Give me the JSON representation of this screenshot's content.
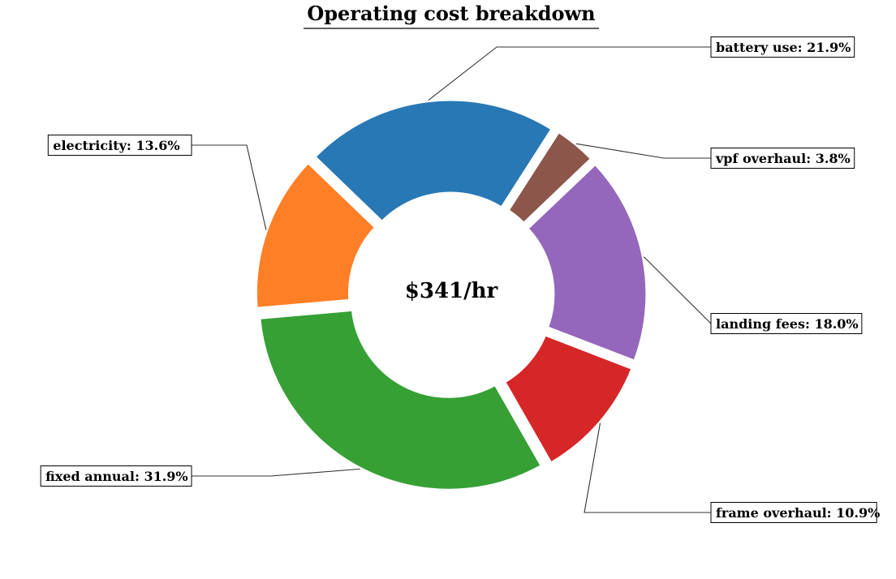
{
  "chart_data": {
    "type": "pie",
    "variant": "donut",
    "title": "Operating cost breakdown",
    "center_label": "$341/hr",
    "slices": [
      {
        "name": "battery use",
        "value": 21.9,
        "label": "battery use: 21.9%",
        "color": "#2878b5"
      },
      {
        "name": "vpf overhaul",
        "value": 3.8,
        "label": "vpf overhaul: 3.8%",
        "color": "#8c564b"
      },
      {
        "name": "landing fees",
        "value": 18.0,
        "label": "landing fees: 18.0%",
        "color": "#9467bd"
      },
      {
        "name": "frame overhaul",
        "value": 10.9,
        "label": "frame overhaul: 10.9%",
        "color": "#d62728"
      },
      {
        "name": "fixed annual",
        "value": 31.9,
        "label": "fixed annual: 31.9%",
        "color": "#36a035"
      },
      {
        "name": "electricity",
        "value": 13.6,
        "label": "electricity: 13.6%",
        "color": "#ff7f27"
      }
    ],
    "start_angle_deg": 48,
    "direction": "clockwise",
    "exploded": true,
    "legend": "none"
  }
}
